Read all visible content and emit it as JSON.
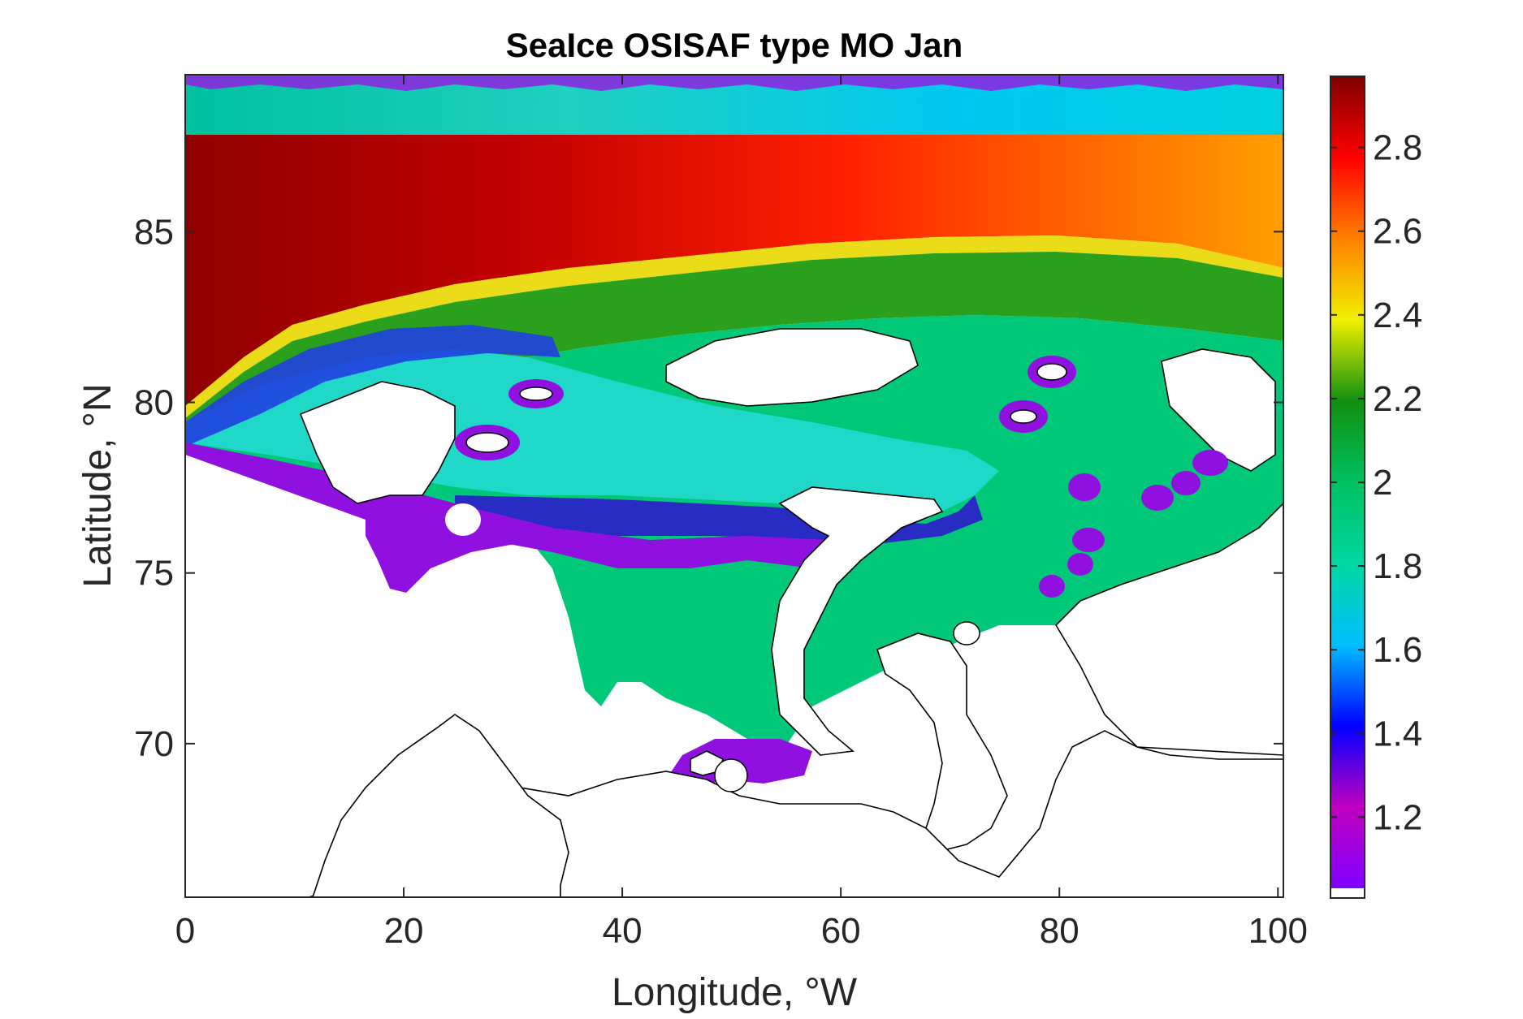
{
  "chart_data": {
    "type": "heatmap",
    "title": "SeaIce OSISAF type MO Jan",
    "xlabel": "Longitude, °W",
    "ylabel": "Latitude, °N",
    "xlim": [
      0,
      100.5
    ],
    "ylim": [
      65.5,
      89.6
    ],
    "xticks": [
      0,
      20,
      40,
      60,
      80,
      100
    ],
    "xtick_labels": [
      "0",
      "20",
      "40",
      "60",
      "80",
      "100"
    ],
    "yticks": [
      70,
      75,
      80,
      85
    ],
    "ytick_labels": [
      "70",
      "75",
      "80",
      "85"
    ],
    "colorbar": {
      "range": [
        1.03,
        2.97
      ],
      "ticks": [
        1.2,
        1.4,
        1.6,
        1.8,
        2,
        2.2,
        2.4,
        2.6,
        2.8
      ],
      "tick_labels": [
        "1.2",
        "1.4",
        "1.6",
        "1.8",
        "2",
        "2.2",
        "2.4",
        "2.6",
        "2.8"
      ],
      "colormap": [
        "#7f00ff",
        "#c000c0",
        "#0000ff",
        "#00bfff",
        "#00d8a0",
        "#00c060",
        "#109010",
        "#f0f000",
        "#ff8000",
        "#ff0000",
        "#800000"
      ]
    },
    "colors": {
      "land": "#ffffff",
      "coast": "#000000",
      "frame": "#262626"
    },
    "grid": false,
    "legend": "none"
  }
}
